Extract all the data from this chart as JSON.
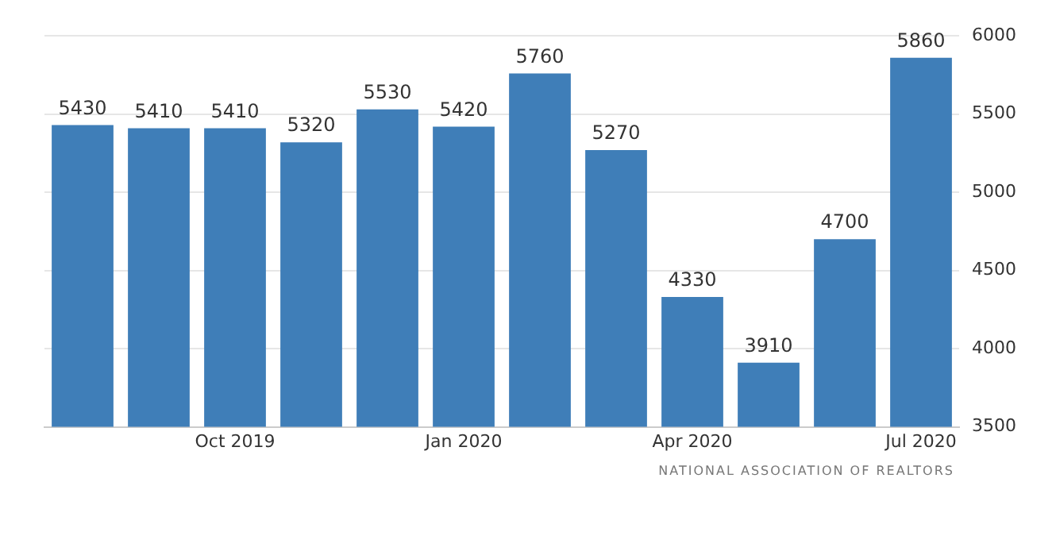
{
  "chart_data": {
    "type": "bar",
    "categories": [
      null,
      null,
      "Oct 2019",
      null,
      null,
      "Jan 2020",
      null,
      null,
      "Apr 2020",
      null,
      null,
      "Jul 2020"
    ],
    "values": [
      5430,
      5410,
      5410,
      5320,
      5530,
      5420,
      5760,
      5270,
      4330,
      3910,
      4700,
      5860
    ],
    "color": "#3f7eb8",
    "ylim": [
      3500,
      6000
    ],
    "yticks": [
      3500,
      4000,
      4500,
      5000,
      5500,
      6000
    ],
    "grid": "y",
    "data_labels": true,
    "annotations": [
      "NATIONAL ASSOCIATION OF REALTORS"
    ]
  }
}
